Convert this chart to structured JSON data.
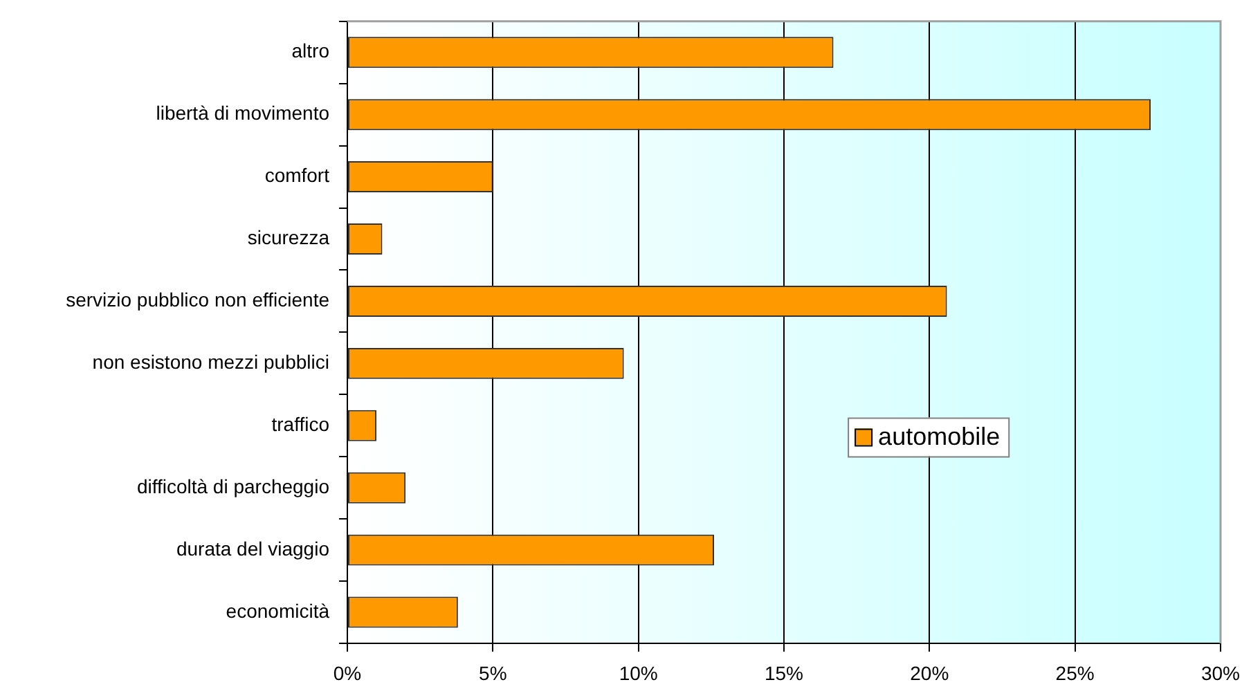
{
  "chart_data": {
    "type": "bar",
    "orientation": "horizontal",
    "categories": [
      "altro",
      "libertà di movimento",
      "comfort",
      "sicurezza",
      "servizio pubblico non efficiente",
      "non esistono mezzi pubblici",
      "traffico",
      "difficoltà di parcheggio",
      "durata del viaggio",
      "economicità"
    ],
    "series": [
      {
        "name": "automobile",
        "color": "#ff9900",
        "values": [
          16.7,
          27.6,
          5.0,
          1.2,
          20.6,
          9.5,
          1.0,
          2.0,
          12.6,
          3.8
        ]
      }
    ],
    "xlim": [
      0,
      30
    ],
    "xticks": [
      {
        "value": 0,
        "label": "0%"
      },
      {
        "value": 5,
        "label": "5%"
      },
      {
        "value": 10,
        "label": "10%"
      },
      {
        "value": 15,
        "label": "15%"
      },
      {
        "value": 20,
        "label": "20%"
      },
      {
        "value": 25,
        "label": "25%"
      },
      {
        "value": 30,
        "label": "30%"
      }
    ],
    "grid": "x",
    "legend": "right"
  }
}
